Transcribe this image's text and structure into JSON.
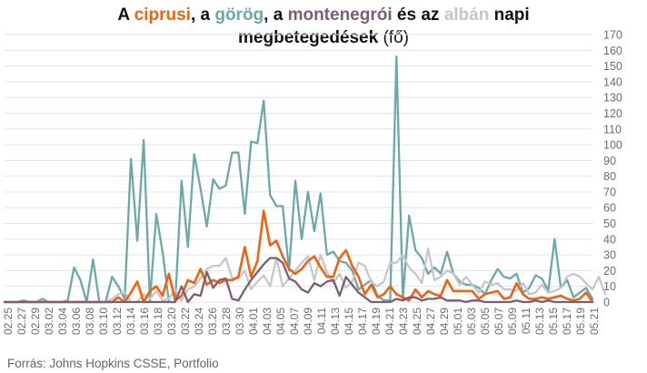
{
  "chart_data": {
    "type": "line",
    "title": {
      "w1": "A ",
      "cyprus": "ciprusi",
      "w2": ", a ",
      "greek": "görög",
      "w3": ", a ",
      "montenegro": "montenegrói",
      "w4": " és az ",
      "albania": "albán",
      "w5": " napi",
      "line2": "megbetegedések",
      "unit": "(fő)"
    },
    "ylim": [
      0,
      170
    ],
    "yticks": [
      0,
      10,
      20,
      30,
      40,
      50,
      60,
      70,
      80,
      90,
      100,
      110,
      120,
      130,
      140,
      150,
      160,
      170
    ],
    "grid": true,
    "x_tick_labels": [
      "02.25",
      "02.27",
      "02.29",
      "03.02",
      "03.04",
      "03.06",
      "03.08",
      "03.10",
      "03.12",
      "03.14",
      "03.16",
      "03.18",
      "03.20",
      "03.22",
      "03.24",
      "03.26",
      "03.28",
      "03.30",
      "04.01",
      "04.03",
      "04.05",
      "04.07",
      "04.09",
      "04.11",
      "04.13",
      "04.15",
      "04.17",
      "04.19",
      "04.21",
      "04.23",
      "04.25",
      "04.27",
      "04.29",
      "05.01",
      "05.03",
      "05.05",
      "05.07",
      "05.09",
      "05.11",
      "05.13",
      "05.15",
      "05.17",
      "05.19",
      "05.21"
    ],
    "x_start_label": "02.25",
    "series": [
      {
        "name": "görög",
        "color": "#6aa9a8",
        "values": [
          0,
          0,
          0,
          1,
          0,
          0,
          2,
          0,
          0,
          0,
          1,
          22,
          14,
          0,
          27,
          0,
          0,
          16,
          10,
          2,
          91,
          39,
          103,
          0,
          56,
          32,
          0,
          0,
          77,
          35,
          94,
          72,
          48,
          78,
          72,
          74,
          95,
          95,
          56,
          102,
          101,
          128,
          68,
          61,
          61,
          20,
          77,
          40,
          70,
          45,
          69,
          30,
          32,
          26,
          25,
          20,
          8,
          11,
          14,
          4,
          1,
          1,
          156,
          2,
          55,
          33,
          28,
          18,
          22,
          18,
          32,
          18,
          13,
          11,
          11,
          9,
          5,
          14,
          21,
          16,
          15,
          18,
          6,
          9,
          17,
          15,
          7,
          40,
          9,
          14,
          3,
          6,
          9,
          2
        ],
        "name_in_title": "görög"
      },
      {
        "name": "albán",
        "color": "#c7c7c7",
        "values": [
          0,
          0,
          0,
          0,
          0,
          0,
          0,
          0,
          0,
          0,
          0,
          0,
          0,
          0,
          0,
          0,
          0,
          2,
          5,
          6,
          0,
          0,
          5,
          2,
          7,
          1,
          2,
          8,
          1,
          8,
          10,
          15,
          21,
          23,
          23,
          28,
          15,
          15,
          20,
          8,
          13,
          17,
          10,
          28,
          10,
          15,
          20,
          25,
          29,
          14,
          30,
          19,
          12,
          18,
          9,
          13,
          25,
          23,
          13,
          10,
          13,
          25,
          25,
          30,
          22,
          18,
          12,
          34,
          14,
          16,
          20,
          18,
          11,
          16,
          11,
          6,
          13,
          11,
          12,
          8,
          8,
          7,
          12,
          5,
          6,
          11,
          6,
          7,
          9,
          16,
          18,
          16,
          12,
          8,
          16,
          5
        ],
        "name_in_title": "albán"
      },
      {
        "name": "ciprusi",
        "color": "#f2620e",
        "values": [
          0,
          0,
          0,
          0,
          0,
          0,
          0,
          0,
          0,
          0,
          0,
          0,
          0,
          0,
          0,
          0,
          0,
          0,
          3,
          0,
          6,
          13,
          0,
          7,
          10,
          4,
          18,
          1,
          4,
          14,
          12,
          21,
          11,
          14,
          12,
          14,
          14,
          16,
          35,
          16,
          26,
          58,
          36,
          39,
          29,
          21,
          18,
          21,
          26,
          29,
          22,
          16,
          16,
          28,
          33,
          23,
          16,
          5,
          11,
          3,
          5,
          10,
          5,
          3,
          1,
          8,
          3,
          7,
          5,
          4,
          14,
          7,
          7,
          7,
          7,
          2,
          5,
          6,
          7,
          2,
          3,
          12,
          5,
          2,
          2,
          3,
          2,
          3,
          4,
          2,
          1,
          2,
          6,
          0
        ],
        "name_in_title": "ciprusi"
      },
      {
        "name": "montenegrói",
        "color": "#7a5d79",
        "values": [
          0,
          0,
          0,
          0,
          0,
          0,
          0,
          0,
          0,
          0,
          0,
          0,
          0,
          0,
          0,
          0,
          0,
          0,
          0,
          0,
          0,
          0,
          0,
          0,
          0,
          0,
          0,
          0,
          10,
          0,
          5,
          4,
          19,
          9,
          14,
          15,
          2,
          1,
          8,
          14,
          19,
          24,
          28,
          28,
          25,
          15,
          13,
          8,
          6,
          12,
          10,
          13,
          14,
          4,
          16,
          11,
          6,
          3,
          0,
          0,
          0,
          0,
          2,
          1,
          3,
          3,
          1,
          2,
          2,
          3,
          1,
          1,
          1,
          0,
          1,
          1,
          0,
          0,
          0,
          0,
          0,
          1,
          0,
          0,
          1,
          0,
          1,
          0,
          0,
          0,
          0,
          0,
          0,
          0
        ],
        "name_in_title": "montenegrói"
      }
    ],
    "source": "Forrás: Johns Hopkins CSSE, Portfolio"
  },
  "colors": {
    "greek": "#6aa9a8",
    "albania": "#c7c7c7",
    "cyprus": "#f2620e",
    "montenegro": "#7a5d79",
    "grid": "#e3e3e3",
    "tick_text": "#6b6b6b"
  }
}
